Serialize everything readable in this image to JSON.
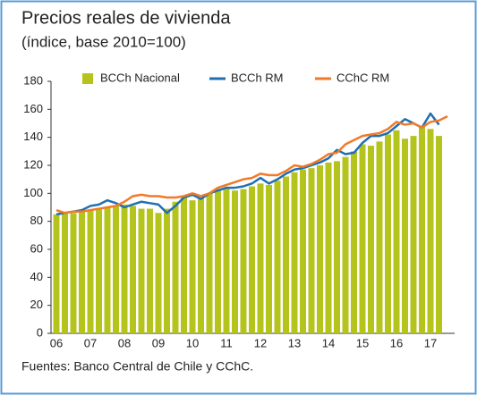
{
  "chart_data": {
    "type": "bar_line",
    "title": "Precios reales de vivienda",
    "subtitle": "(índice, base 2010=100)",
    "source": "Fuentes: Banco Central de Chile y CChC.",
    "categories": [
      "06",
      null,
      null,
      null,
      "07",
      null,
      null,
      null,
      "08",
      null,
      null,
      null,
      "09",
      null,
      null,
      null,
      "10",
      null,
      null,
      null,
      "11",
      null,
      null,
      null,
      "12",
      null,
      null,
      null,
      "13",
      null,
      null,
      null,
      "14",
      null,
      null,
      null,
      "15",
      null,
      null,
      null,
      "16",
      null,
      null,
      null,
      "17",
      null,
      null
    ],
    "series": [
      {
        "name": "BCCh Nacional",
        "kind": "bar",
        "color": "#b5c41c",
        "values": [
          85,
          86,
          86,
          87,
          88,
          89,
          90,
          91,
          92,
          91,
          89,
          89,
          86,
          89,
          94,
          97,
          95,
          97,
          100,
          103,
          104,
          102,
          103,
          105,
          107,
          106,
          109,
          112,
          115,
          117,
          118,
          120,
          122,
          123,
          126,
          130,
          135,
          134,
          137,
          142,
          145,
          139,
          141,
          148,
          146,
          141,
          null
        ]
      },
      {
        "name": "BCCh RM",
        "kind": "line",
        "color": "#1f6fb5",
        "values": [
          85,
          86,
          87,
          88,
          91,
          92,
          95,
          93,
          90,
          92,
          94,
          93,
          92,
          86,
          91,
          97,
          99,
          96,
          100,
          102,
          104,
          104,
          105,
          107,
          111,
          107,
          110,
          114,
          117,
          118,
          120,
          122,
          125,
          131,
          128,
          129,
          136,
          141,
          141,
          143,
          148,
          153,
          150,
          147,
          157,
          149,
          null
        ]
      },
      {
        "name": "CChC RM",
        "kind": "line",
        "color": "#f07a2a",
        "values": [
          88,
          86,
          87,
          87,
          88,
          89,
          90,
          91,
          94,
          98,
          99,
          98,
          98,
          97,
          97,
          98,
          100,
          98,
          100,
          104,
          106,
          108,
          110,
          111,
          114,
          113,
          113,
          116,
          120,
          119,
          121,
          124,
          128,
          129,
          135,
          138,
          141,
          142,
          143,
          146,
          151,
          149,
          150,
          147,
          151,
          152,
          155
        ]
      }
    ],
    "ylim": [
      0,
      180
    ],
    "yticks": [
      0,
      20,
      40,
      60,
      80,
      100,
      120,
      140,
      160,
      180
    ]
  }
}
